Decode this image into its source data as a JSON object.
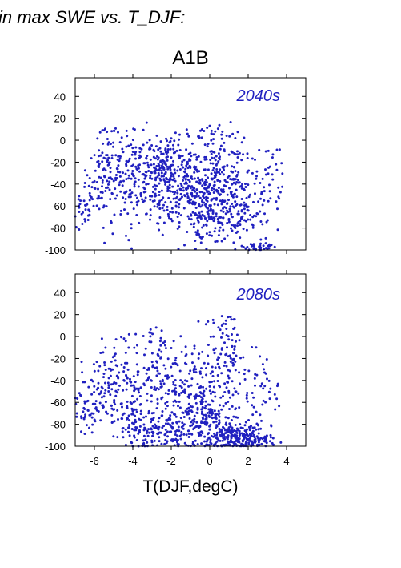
{
  "figure": {
    "title": "in max SWE vs. T_DJF:",
    "scenario": "A1B",
    "xlabel": "T(DJF,degC)",
    "point_color": "#2020c0",
    "label_color": "#2020c0"
  },
  "chart_data": [
    {
      "type": "scatter",
      "panel_label": "2040s",
      "xlabel": "T(DJF,degC)",
      "ylabel": "",
      "xlim": [
        -7,
        5
      ],
      "ylim": [
        -100,
        57
      ],
      "xticks": [
        -6,
        -4,
        -2,
        0,
        2,
        4
      ],
      "yticks": [
        -100,
        -80,
        -60,
        -40,
        -20,
        0,
        20,
        40
      ],
      "grid": false,
      "clusters": [
        {
          "x": -6.6,
          "y": -65,
          "sx": 0.3,
          "sy": 8,
          "n": 20
        },
        {
          "x": -5.8,
          "y": -40,
          "sx": 0.5,
          "sy": 15,
          "n": 50
        },
        {
          "x": -5.2,
          "y": -20,
          "sx": 0.4,
          "sy": 14,
          "n": 40
        },
        {
          "x": -4.5,
          "y": -42,
          "sx": 0.5,
          "sy": 18,
          "n": 70
        },
        {
          "x": -3.5,
          "y": -30,
          "sx": 0.6,
          "sy": 18,
          "n": 80
        },
        {
          "x": -2.3,
          "y": -20,
          "sx": 0.6,
          "sy": 12,
          "n": 90
        },
        {
          "x": -2.0,
          "y": -55,
          "sx": 0.8,
          "sy": 18,
          "n": 100
        },
        {
          "x": -1.0,
          "y": -35,
          "sx": 0.8,
          "sy": 20,
          "n": 110
        },
        {
          "x": -0.2,
          "y": -58,
          "sx": 0.6,
          "sy": 15,
          "n": 120
        },
        {
          "x": 0.7,
          "y": -30,
          "sx": 0.8,
          "sy": 18,
          "n": 110
        },
        {
          "x": 1.2,
          "y": -70,
          "sx": 0.8,
          "sy": 15,
          "n": 110
        },
        {
          "x": 2.3,
          "y": -45,
          "sx": 0.8,
          "sy": 22,
          "n": 70
        },
        {
          "x": 0.3,
          "y": 5,
          "sx": 1.0,
          "sy": 5,
          "n": 25
        },
        {
          "x": -5.1,
          "y": 5,
          "sx": 0.4,
          "sy": 4,
          "n": 8
        },
        {
          "x": 2.6,
          "y": -97,
          "sx": 0.5,
          "sy": 2,
          "n": 30
        },
        {
          "x": 3.2,
          "y": -20,
          "sx": 0.4,
          "sy": 10,
          "n": 15
        }
      ],
      "total_points": 1200
    },
    {
      "type": "scatter",
      "panel_label": "2080s",
      "xlabel": "T(DJF,degC)",
      "ylabel": "",
      "xlim": [
        -7,
        5
      ],
      "ylim": [
        -100,
        57
      ],
      "xticks": [
        -6,
        -4,
        -2,
        0,
        2,
        4
      ],
      "yticks": [
        -100,
        -80,
        -60,
        -40,
        -20,
        0,
        20,
        40
      ],
      "grid": false,
      "clusters": [
        {
          "x": -6.6,
          "y": -65,
          "sx": 0.3,
          "sy": 12,
          "n": 25
        },
        {
          "x": -5.8,
          "y": -55,
          "sx": 0.5,
          "sy": 14,
          "n": 50
        },
        {
          "x": -4.8,
          "y": -35,
          "sx": 0.6,
          "sy": 18,
          "n": 70
        },
        {
          "x": -4.0,
          "y": -70,
          "sx": 0.6,
          "sy": 15,
          "n": 70
        },
        {
          "x": -2.5,
          "y": -35,
          "sx": 0.7,
          "sy": 18,
          "n": 90
        },
        {
          "x": -2.5,
          "y": -85,
          "sx": 0.9,
          "sy": 10,
          "n": 110
        },
        {
          "x": -1.0,
          "y": -50,
          "sx": 0.8,
          "sy": 22,
          "n": 110
        },
        {
          "x": 0.0,
          "y": -75,
          "sx": 0.7,
          "sy": 15,
          "n": 140
        },
        {
          "x": 0.8,
          "y": -20,
          "sx": 0.7,
          "sy": 18,
          "n": 70
        },
        {
          "x": 1.5,
          "y": -92,
          "sx": 0.9,
          "sy": 6,
          "n": 200
        },
        {
          "x": 2.5,
          "y": -60,
          "sx": 0.8,
          "sy": 22,
          "n": 60
        },
        {
          "x": 0.5,
          "y": 12,
          "sx": 0.6,
          "sy": 6,
          "n": 15
        },
        {
          "x": -3.6,
          "y": 0,
          "sx": 0.6,
          "sy": 5,
          "n": 10
        }
      ],
      "total_points": 1200
    }
  ]
}
